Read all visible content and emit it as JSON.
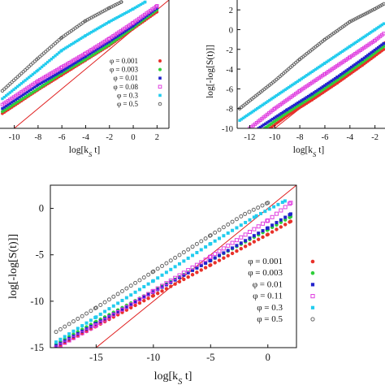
{
  "colors": {
    "phi_0_001": "#e8312a",
    "phi_0_003": "#2fcf3a",
    "phi_0_01": "#2222cc",
    "phi_0_08": "#e040e0",
    "phi_0_11": "#e040e0",
    "phi_0_3": "#22ccee",
    "phi_0_5": "#666666",
    "reference": "#e02020"
  },
  "chart_data": [
    {
      "id": "top-left",
      "type": "scatter",
      "xlabel": "log[k_S t]",
      "ylabel": "",
      "xlim": [
        -11.2,
        3.0
      ],
      "ylim": [
        -10,
        3
      ],
      "x_ticks": [
        -10,
        -8,
        -6,
        -4,
        -2,
        0,
        2
      ],
      "y_ticks": [],
      "legend_placement": "right",
      "series": [
        {
          "name": "φ = 0.001",
          "marker": "dot",
          "color_key": "phi_0_001",
          "x": [
            -11,
            -8,
            -6,
            -4,
            -2,
            0,
            2
          ],
          "y": [
            -8.5,
            -6.1,
            -4.6,
            -3.1,
            -1.6,
            0.1,
            1.8
          ]
        },
        {
          "name": "φ = 0.003",
          "marker": "dot",
          "color_key": "phi_0_003",
          "x": [
            -11,
            -8,
            -6,
            -4,
            -2,
            0,
            2
          ],
          "y": [
            -8.3,
            -6.0,
            -4.4,
            -3.0,
            -1.5,
            0.2,
            2.0
          ]
        },
        {
          "name": "φ = 0.01",
          "marker": "square",
          "color_key": "phi_0_01",
          "x": [
            -11,
            -8,
            -6,
            -4,
            -2,
            0,
            2
          ],
          "y": [
            -8.0,
            -5.6,
            -4.2,
            -2.7,
            -1.2,
            0.4,
            2.2
          ]
        },
        {
          "name": "φ = 0.08",
          "marker": "square-open",
          "color_key": "phi_0_08",
          "x": [
            -11,
            -8,
            -6,
            -4,
            -2,
            0,
            2
          ],
          "y": [
            -7.6,
            -5.2,
            -3.8,
            -2.4,
            -0.9,
            0.7,
            2.4
          ]
        },
        {
          "name": "φ = 0.3",
          "marker": "square",
          "color_key": "phi_0_3",
          "x": [
            -11,
            -8,
            -6,
            -4,
            -2,
            0,
            1
          ],
          "y": [
            -7.0,
            -4.1,
            -2.1,
            -0.6,
            0.8,
            2.1,
            2.8
          ]
        },
        {
          "name": "φ = 0.5",
          "marker": "circle-open",
          "color_key": "phi_0_5",
          "x": [
            -11,
            -8,
            -6,
            -4,
            -2,
            -1
          ],
          "y": [
            -6.2,
            -2.9,
            -0.8,
            0.9,
            2.2,
            2.8
          ]
        }
      ],
      "reference_line": {
        "x": [
          -10,
          3
        ],
        "y": [
          -10,
          3
        ]
      }
    },
    {
      "id": "top-right",
      "type": "scatter",
      "xlabel": "log[k_S t]",
      "ylabel": "log[-log[S(t)]]",
      "xlim": [
        -13,
        -1.2
      ],
      "ylim": [
        -10,
        3
      ],
      "x_ticks": [
        -12,
        -10,
        -8,
        -6,
        -4,
        -2
      ],
      "y_ticks": [
        -10,
        -8,
        -6,
        -4,
        -2,
        0,
        2
      ],
      "series": [
        {
          "name": "φ = 0.001",
          "marker": "dot",
          "color_key": "phi_0_001",
          "x": [
            -10.4,
            -9,
            -7,
            -5,
            -3,
            -1.3
          ],
          "y": [
            -10,
            -8.7,
            -7.1,
            -5.4,
            -3.6,
            -2.0
          ]
        },
        {
          "name": "φ = 0.003",
          "marker": "dot",
          "color_key": "phi_0_003",
          "x": [
            -10.8,
            -9,
            -7,
            -5,
            -3,
            -1.3
          ],
          "y": [
            -10,
            -8.4,
            -6.8,
            -5.1,
            -3.3,
            -1.7
          ]
        },
        {
          "name": "φ = 0.01",
          "marker": "square",
          "color_key": "phi_0_01",
          "x": [
            -11.3,
            -9,
            -7,
            -5,
            -3,
            -1.3
          ],
          "y": [
            -10,
            -8.1,
            -6.5,
            -4.8,
            -3.0,
            -1.4
          ]
        },
        {
          "name": "φ = 0.08",
          "marker": "square-open",
          "color_key": "phi_0_08",
          "x": [
            -12,
            -10,
            -8,
            -6,
            -4,
            -2,
            -1.3
          ],
          "y": [
            -10,
            -8.0,
            -6.2,
            -4.5,
            -2.8,
            -1.1,
            -0.4
          ]
        },
        {
          "name": "φ = 0.3",
          "marker": "square",
          "color_key": "phi_0_3",
          "x": [
            -12.8,
            -10,
            -8,
            -6,
            -4,
            -2,
            -1.3
          ],
          "y": [
            -9.2,
            -6.8,
            -5.1,
            -3.4,
            -1.7,
            0.0,
            0.6
          ]
        },
        {
          "name": "φ = 0.5",
          "marker": "circle-open",
          "color_key": "phi_0_5",
          "x": [
            -12.8,
            -10,
            -8,
            -6,
            -4,
            -2,
            -1.3
          ],
          "y": [
            -8.0,
            -5.2,
            -3.0,
            -1.0,
            0.8,
            2.1,
            2.6
          ]
        }
      ],
      "reference_line": {
        "x": [
          -10,
          -1.2
        ],
        "y": [
          -10,
          -1.2
        ]
      }
    },
    {
      "id": "bottom",
      "type": "scatter",
      "xlabel": "log[k_S t]",
      "ylabel": "log[-log[S(t)]]",
      "xlim": [
        -19,
        2.5
      ],
      "ylim": [
        -15,
        2.5
      ],
      "x_ticks": [
        -15,
        -10,
        -5,
        0
      ],
      "y_ticks": [
        -15,
        -10,
        -5,
        0
      ],
      "legend_placement": "right",
      "series": [
        {
          "name": "φ = 0.001",
          "marker": "dot",
          "color_key": "phi_0_001",
          "x": [
            -18.5,
            -15,
            -10,
            -5,
            0,
            2
          ],
          "y": [
            -15,
            -12.7,
            -9.4,
            -6.1,
            -2.8,
            -1.4
          ]
        },
        {
          "name": "φ = 0.003",
          "marker": "dot",
          "color_key": "phi_0_003",
          "x": [
            -18.5,
            -15,
            -10,
            -5,
            0,
            2
          ],
          "y": [
            -14.6,
            -12.2,
            -8.9,
            -5.6,
            -2.3,
            -0.9
          ]
        },
        {
          "name": "φ = 0.01",
          "marker": "square",
          "color_key": "phi_0_01",
          "x": [
            -18.5,
            -15,
            -10,
            -5,
            0,
            2
          ],
          "y": [
            -14.8,
            -12.4,
            -9.0,
            -5.6,
            -2.1,
            -0.6
          ]
        },
        {
          "name": "φ = 0.11",
          "marker": "square-open",
          "color_key": "phi_0_11",
          "x": [
            -18.5,
            -15,
            -10,
            -5,
            0,
            2
          ],
          "y": [
            -15,
            -12.6,
            -8.9,
            -5.2,
            -1.3,
            0.6
          ]
        },
        {
          "name": "φ = 0.3",
          "marker": "square",
          "color_key": "phi_0_3",
          "x": [
            -18.5,
            -15,
            -10,
            -5,
            -1,
            1.5
          ],
          "y": [
            -14.4,
            -11.7,
            -7.8,
            -3.8,
            -0.8,
            0.8
          ]
        },
        {
          "name": "φ = 0.5",
          "marker": "circle-open",
          "color_key": "phi_0_5",
          "x": [
            -18.5,
            -15,
            -10,
            -5,
            -2,
            0
          ],
          "y": [
            -13.3,
            -10.7,
            -6.8,
            -2.9,
            -0.6,
            0.6
          ]
        }
      ],
      "reference_line": {
        "x": [
          -15,
          2.5
        ],
        "y": [
          -15,
          2.5
        ]
      }
    }
  ]
}
